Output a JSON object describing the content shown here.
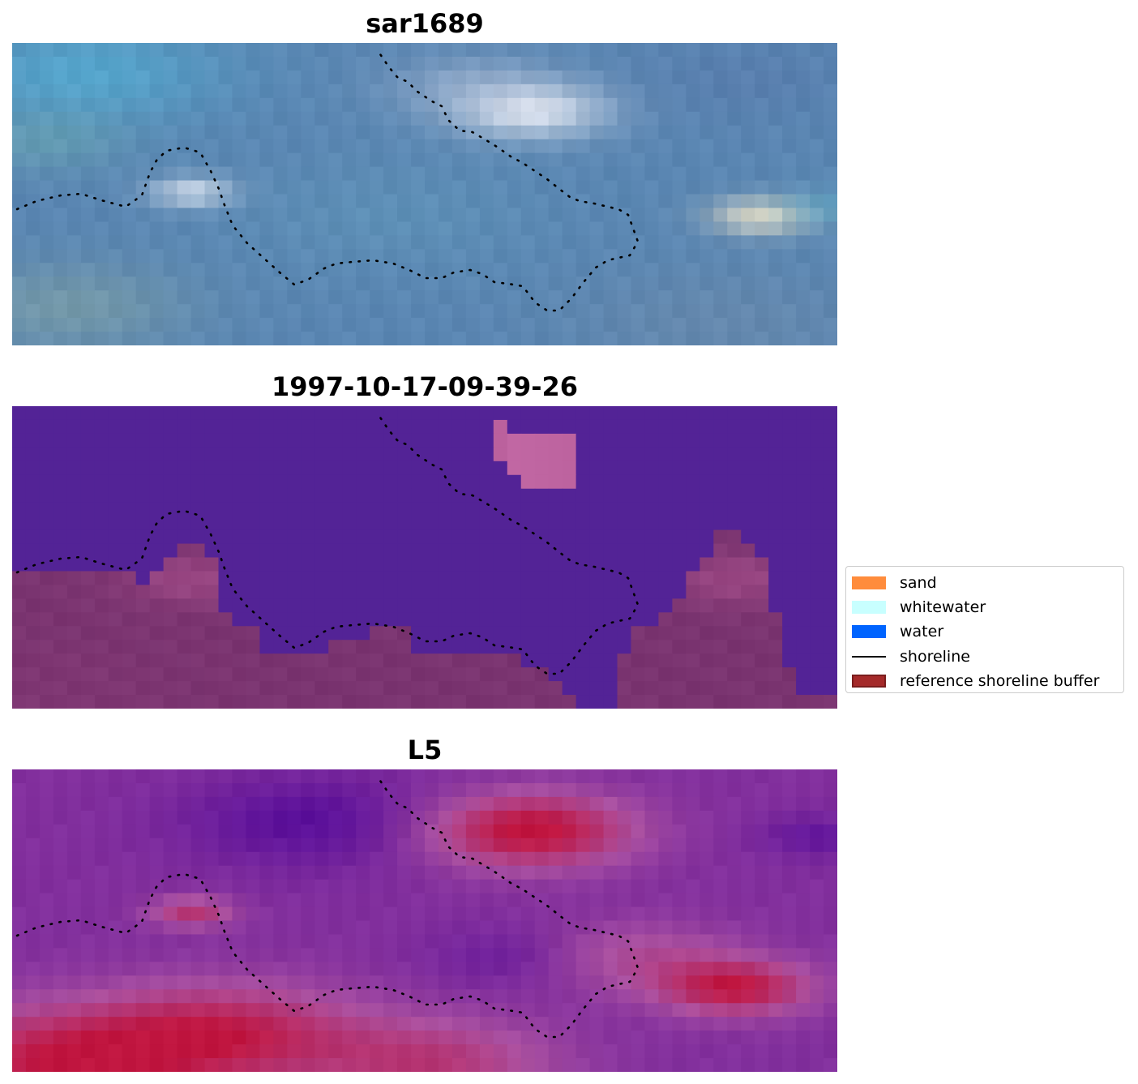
{
  "panels": [
    {
      "title": "sar1689",
      "kind": "rgb"
    },
    {
      "title": "1997-10-17-09-39-26",
      "kind": "classified"
    },
    {
      "title": "L5",
      "kind": "index"
    }
  ],
  "legend": {
    "items": [
      {
        "label": "sand",
        "color": "#ff8c3c",
        "type": "patch"
      },
      {
        "label": "whitewater",
        "color": "#c8ffff",
        "type": "patch"
      },
      {
        "label": "water",
        "color": "#0064ff",
        "type": "patch"
      },
      {
        "label": "shoreline",
        "color": "#000000",
        "type": "line"
      },
      {
        "label": "reference shoreline buffer",
        "color": "#a52a2a",
        "type": "patch"
      }
    ]
  },
  "colors": {
    "water_class": "#532396",
    "buffer_overlay": "#7a3470",
    "rgb_base": "#5a86b2",
    "index_low": "#5a0f9a",
    "index_high": "#c0153f"
  }
}
